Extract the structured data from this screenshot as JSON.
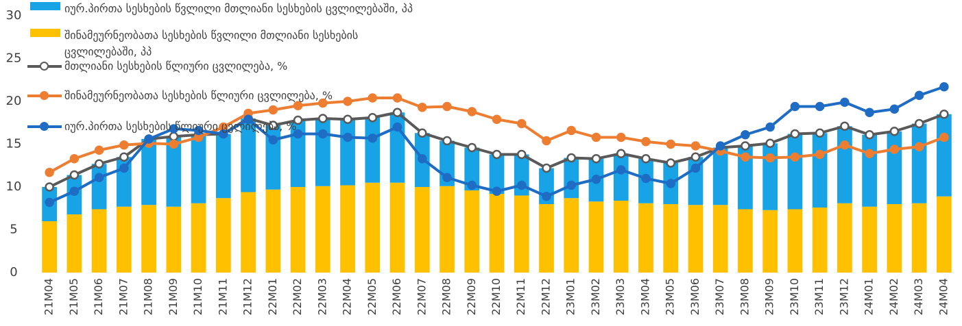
{
  "chart_data": {
    "type": "bar",
    "categories": [
      "21M04",
      "21M05",
      "21M06",
      "21M07",
      "21M08",
      "21M09",
      "21M10",
      "21M11",
      "21M12",
      "22M01",
      "22M02",
      "22M03",
      "22M04",
      "22M05",
      "22M06",
      "22M07",
      "22M08",
      "22M09",
      "22M10",
      "22M11",
      "22M12",
      "23M01",
      "23M02",
      "23M03",
      "23M04",
      "23M05",
      "23M06",
      "23M07",
      "23M08",
      "23M09",
      "23M10",
      "23M11",
      "23M12",
      "24M01",
      "24M02",
      "24M03",
      "24M04"
    ],
    "series": [
      {
        "name": "იურ.პირთა სესხების წვლილი მთლიანი სესხების ცვლილებაში, პპ",
        "type": "bar",
        "color": "#18a3e6",
        "values": [
          4.0,
          4.6,
          5.3,
          5.8,
          7.7,
          8.2,
          8.0,
          7.5,
          8.6,
          7.5,
          7.8,
          7.9,
          7.7,
          7.6,
          8.2,
          6.3,
          5.3,
          5.0,
          4.6,
          4.8,
          4.2,
          4.7,
          5.0,
          5.5,
          5.2,
          4.8,
          5.6,
          6.7,
          7.4,
          7.8,
          8.8,
          8.7,
          9.0,
          8.4,
          8.5,
          9.3,
          9.6
        ]
      },
      {
        "name": "შინამეურნეობათა სესხების წვლილი მთლიანი სესხების ცვლილებაში, პპ",
        "type": "bar",
        "color": "#ffc000",
        "values": [
          6.0,
          6.8,
          7.4,
          7.7,
          7.9,
          7.7,
          8.1,
          8.7,
          9.4,
          9.7,
          10.0,
          10.1,
          10.2,
          10.5,
          10.5,
          10.0,
          10.1,
          9.6,
          9.2,
          9.0,
          8.0,
          8.7,
          8.3,
          8.4,
          8.1,
          8.0,
          7.9,
          7.9,
          7.4,
          7.3,
          7.4,
          7.6,
          8.1,
          7.7,
          8.0,
          8.1,
          8.9
        ]
      },
      {
        "name": "მთლიანი სესხების წლიური ცვლილება, %",
        "type": "line",
        "color": "#595959",
        "marker_fill": "#ffffff",
        "values": [
          10.0,
          11.4,
          12.7,
          13.5,
          15.6,
          15.9,
          16.1,
          16.2,
          18.0,
          17.2,
          17.8,
          18.0,
          17.9,
          18.1,
          18.7,
          16.3,
          15.4,
          14.6,
          13.8,
          13.8,
          12.2,
          13.4,
          13.3,
          13.9,
          13.3,
          12.8,
          13.5,
          14.6,
          14.8,
          15.1,
          16.2,
          16.3,
          17.1,
          16.1,
          16.5,
          17.4,
          18.5
        ]
      },
      {
        "name": "შინამეურნეობათა სესხების წლიური ცვლილება, %",
        "type": "line",
        "color": "#ed7d31",
        "marker_fill": "#ed7d31",
        "values": [
          11.7,
          13.3,
          14.3,
          14.9,
          15.1,
          15.0,
          15.8,
          17.0,
          18.6,
          19.0,
          19.5,
          19.8,
          20.0,
          20.4,
          20.4,
          19.3,
          19.4,
          18.8,
          17.9,
          17.4,
          15.4,
          16.6,
          15.8,
          15.8,
          15.3,
          15.0,
          14.8,
          14.2,
          13.5,
          13.4,
          13.5,
          13.8,
          14.9,
          13.9,
          14.4,
          14.7,
          15.8
        ]
      },
      {
        "name": "იურ.პირთა სესხების წლიური ცვლილება, %",
        "type": "line",
        "color": "#1f6cc4",
        "marker_fill": "#1f6cc4",
        "values": [
          8.2,
          9.5,
          11.1,
          12.2,
          15.6,
          16.8,
          16.6,
          16.2,
          17.9,
          15.5,
          16.2,
          16.2,
          15.8,
          15.7,
          17.0,
          13.3,
          11.1,
          10.2,
          9.5,
          10.2,
          8.9,
          10.2,
          10.9,
          12.0,
          11.0,
          10.4,
          12.2,
          14.8,
          16.1,
          17.0,
          19.4,
          19.4,
          19.9,
          18.7,
          19.1,
          20.7,
          21.7
        ]
      }
    ],
    "ylim": [
      0,
      30
    ],
    "yticks": [
      0,
      5,
      10,
      15,
      20,
      25,
      30
    ],
    "legend": "top-left"
  }
}
